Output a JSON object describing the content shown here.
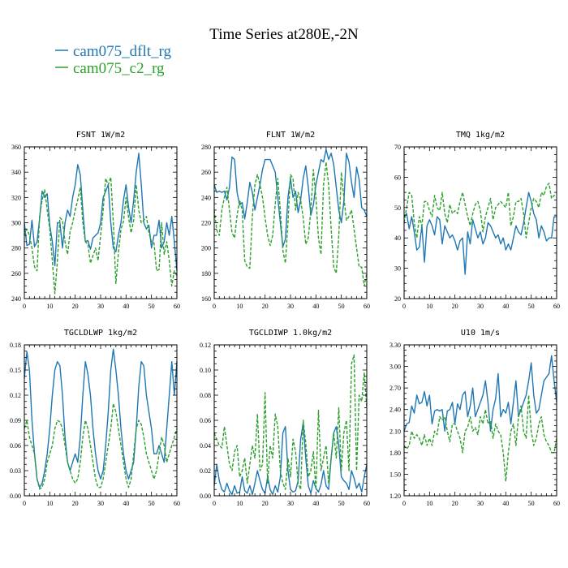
{
  "figure": {
    "title": "Time Series at280E,-2N"
  },
  "legend": [
    {
      "name": "cam075_dflt_rg",
      "color": "#1f77b4",
      "dash": "solid"
    },
    {
      "name": "cam075_c2_rg",
      "color": "#2ca02c",
      "dash": "dashed"
    }
  ],
  "chart_data": [
    {
      "type": "line",
      "title": "FSNT   1W/m2",
      "xlim": [
        0,
        60
      ],
      "ylim": [
        240,
        360
      ],
      "xticks": [
        0,
        10,
        20,
        30,
        40,
        50,
        60
      ],
      "yticks": [
        240,
        260,
        280,
        300,
        320,
        340,
        360
      ],
      "yformat": 0,
      "series": [
        {
          "name": "cam075_dflt_rg",
          "values": [
            300,
            282,
            283,
            302,
            281,
            285,
            303,
            325,
            320,
            323,
            298,
            285,
            266,
            300,
            300,
            280,
            300,
            310,
            305,
            320,
            330,
            346,
            338,
            310,
            285,
            286,
            279,
            288,
            290,
            292,
            300,
            320,
            325,
            330,
            300,
            280,
            277,
            290,
            300,
            318,
            330,
            312,
            300,
            318,
            340,
            355,
            330,
            300,
            295,
            298,
            280,
            290,
            290,
            302,
            280,
            285,
            300,
            290,
            305,
            285,
            262
          ]
        },
        {
          "name": "cam075_c2_rg",
          "values": [
            290,
            295,
            290,
            280,
            265,
            262,
            305,
            318,
            326,
            310,
            295,
            270,
            244,
            270,
            304,
            302,
            285,
            275,
            293,
            300,
            310,
            318,
            328,
            300,
            285,
            283,
            268,
            274,
            280,
            270,
            290,
            310,
            335,
            330,
            336,
            300,
            252,
            276,
            295,
            301,
            320,
            304,
            292,
            302,
            330,
            310,
            300,
            302,
            305,
            292,
            285,
            284,
            262,
            263,
            300,
            275,
            285,
            270,
            250,
            262,
            258
          ]
        }
      ]
    },
    {
      "type": "line",
      "title": "FLNT   1W/m2",
      "xlim": [
        0,
        60
      ],
      "ylim": [
        160,
        280
      ],
      "xticks": [
        0,
        10,
        20,
        30,
        40,
        50,
        60
      ],
      "yticks": [
        160,
        180,
        200,
        220,
        240,
        260,
        280
      ],
      "yformat": 0,
      "series": [
        {
          "name": "cam075_dflt_rg",
          "values": [
            250,
            244,
            245,
            244,
            245,
            238,
            248,
            272,
            270,
            244,
            234,
            236,
            223,
            236,
            252,
            244,
            230,
            240,
            250,
            262,
            270,
            270,
            270,
            265,
            260,
            240,
            220,
            201,
            207,
            240,
            255,
            240,
            245,
            228,
            238,
            255,
            265,
            248,
            226,
            234,
            250,
            260,
            270,
            268,
            278,
            270,
            275,
            266,
            248,
            230,
            220,
            237,
            275,
            268,
            252,
            240,
            264,
            254,
            232,
            230,
            225
          ]
        },
        {
          "name": "cam075_c2_rg",
          "values": [
            230,
            214,
            210,
            230,
            240,
            248,
            230,
            212,
            208,
            226,
            238,
            230,
            190,
            185,
            184,
            225,
            250,
            258,
            250,
            240,
            224,
            210,
            202,
            210,
            235,
            255,
            230,
            198,
            188,
            220,
            258,
            255,
            230,
            244,
            238,
            224,
            203,
            208,
            230,
            262,
            240,
            208,
            195,
            250,
            268,
            250,
            215,
            185,
            180,
            210,
            260,
            240,
            222,
            225,
            230,
            215,
            200,
            185,
            185,
            170,
            180
          ]
        }
      ]
    },
    {
      "type": "line",
      "title": "TMQ   1kg/m2",
      "xlim": [
        0,
        60
      ],
      "ylim": [
        20,
        70
      ],
      "xticks": [
        0,
        10,
        20,
        30,
        40,
        50,
        60
      ],
      "yticks": [
        20,
        30,
        40,
        50,
        60,
        70
      ],
      "yformat": 0,
      "series": [
        {
          "name": "cam075_dflt_rg",
          "values": [
            47,
            48,
            43,
            47,
            42,
            36,
            37,
            44,
            32,
            44,
            46,
            44,
            41,
            47,
            46,
            38,
            44,
            42,
            40,
            41,
            39,
            36,
            39,
            40,
            28,
            42,
            38,
            46,
            43,
            40,
            42,
            38,
            40,
            45,
            44,
            42,
            40,
            41,
            38,
            40,
            36,
            38,
            36,
            40,
            44,
            42,
            41,
            45,
            50,
            55,
            52,
            48,
            46,
            40,
            44,
            42,
            39,
            40,
            40,
            47,
            47
          ]
        },
        {
          "name": "cam075_c2_rg",
          "values": [
            45,
            50,
            55,
            54,
            45,
            40,
            47,
            44,
            52,
            52,
            49,
            47,
            54,
            50,
            49,
            55,
            48,
            45,
            51,
            48,
            49,
            48,
            52,
            55,
            51,
            47,
            44,
            48,
            51,
            52,
            49,
            42,
            47,
            50,
            53,
            46,
            50,
            51,
            52,
            51,
            50,
            55,
            44,
            47,
            52,
            52,
            53,
            48,
            40,
            45,
            50,
            53,
            52,
            50,
            55,
            54,
            57,
            58,
            53,
            54,
            54
          ]
        }
      ]
    },
    {
      "type": "line",
      "title": "TGCLDLWP   1kg/m2",
      "xlim": [
        0,
        60
      ],
      "ylim": [
        0,
        0.18
      ],
      "xticks": [
        0,
        10,
        20,
        30,
        40,
        50,
        60
      ],
      "yticks": [
        0.0,
        0.03,
        0.06,
        0.09,
        0.12,
        0.15,
        0.18
      ],
      "yformat": 2,
      "series": [
        {
          "name": "cam075_dflt_rg",
          "values": [
            0.14,
            0.172,
            0.15,
            0.09,
            0.05,
            0.02,
            0.01,
            0.015,
            0.03,
            0.05,
            0.08,
            0.12,
            0.15,
            0.16,
            0.155,
            0.12,
            0.07,
            0.04,
            0.03,
            0.04,
            0.05,
            0.04,
            0.07,
            0.12,
            0.16,
            0.145,
            0.12,
            0.08,
            0.05,
            0.03,
            0.02,
            0.03,
            0.06,
            0.1,
            0.15,
            0.175,
            0.15,
            0.12,
            0.08,
            0.05,
            0.03,
            0.02,
            0.03,
            0.04,
            0.08,
            0.13,
            0.16,
            0.155,
            0.12,
            0.1,
            0.08,
            0.05,
            0.05,
            0.06,
            0.05,
            0.04,
            0.08,
            0.12,
            0.16,
            0.12,
            0.16
          ]
        },
        {
          "name": "cam075_c2_rg",
          "values": [
            0.08,
            0.09,
            0.07,
            0.06,
            0.05,
            0.02,
            0.008,
            0.01,
            0.02,
            0.04,
            0.05,
            0.06,
            0.08,
            0.09,
            0.088,
            0.08,
            0.06,
            0.04,
            0.03,
            0.02,
            0.015,
            0.02,
            0.04,
            0.07,
            0.09,
            0.08,
            0.06,
            0.04,
            0.02,
            0.01,
            0.01,
            0.02,
            0.04,
            0.06,
            0.08,
            0.11,
            0.1,
            0.08,
            0.06,
            0.04,
            0.02,
            0.01,
            0.02,
            0.05,
            0.08,
            0.09,
            0.085,
            0.07,
            0.05,
            0.04,
            0.03,
            0.02,
            0.03,
            0.05,
            0.07,
            0.06,
            0.04,
            0.05,
            0.06,
            0.07,
            0.08
          ]
        }
      ]
    },
    {
      "type": "line",
      "title": "TGCLDIWP   1.0kg/m2",
      "xlim": [
        0,
        60
      ],
      "ylim": [
        0,
        0.12
      ],
      "xticks": [
        0,
        10,
        20,
        30,
        40,
        50,
        60
      ],
      "yticks": [
        0.0,
        0.02,
        0.04,
        0.06,
        0.08,
        0.1,
        0.12
      ],
      "yformat": 2,
      "series": [
        {
          "name": "cam075_dflt_rg",
          "values": [
            0.008,
            0.025,
            0.012,
            0.005,
            0.003,
            0.01,
            0.004,
            0.001,
            0.008,
            0.002,
            0.003,
            0.015,
            0.004,
            0.002,
            0.008,
            0.001,
            0.01,
            0.02,
            0.012,
            0.005,
            0.002,
            0.015,
            0.005,
            0.001,
            0.008,
            0.003,
            0.015,
            0.05,
            0.055,
            0.02,
            0.005,
            0.003,
            0.004,
            0.012,
            0.045,
            0.058,
            0.03,
            0.008,
            0.002,
            0.012,
            0.006,
            0.003,
            0.009,
            0.02,
            0.008,
            0.005,
            0.03,
            0.05,
            0.055,
            0.04,
            0.015,
            0.012,
            0.01,
            0.005,
            0.02,
            0.014,
            0.006,
            0.01,
            0.003,
            0.015,
            0.025
          ]
        },
        {
          "name": "cam075_c2_rg",
          "values": [
            0.05,
            0.045,
            0.04,
            0.038,
            0.055,
            0.04,
            0.025,
            0.02,
            0.035,
            0.04,
            0.015,
            0.02,
            0.03,
            0.01,
            0.025,
            0.04,
            0.03,
            0.065,
            0.02,
            0.025,
            0.082,
            0.01,
            0.04,
            0.03,
            0.065,
            0.055,
            0.02,
            0.01,
            0.005,
            0.03,
            0.015,
            0.045,
            0.035,
            0.01,
            0.005,
            0.06,
            0.042,
            0.015,
            0.02,
            0.035,
            0.005,
            0.068,
            0.02,
            0.03,
            0.04,
            0.01,
            0.03,
            0.05,
            0.03,
            0.07,
            0.02,
            0.05,
            0.06,
            0.02,
            0.105,
            0.112,
            0.02,
            0.08,
            0.075,
            0.098,
            0.07
          ]
        }
      ]
    },
    {
      "type": "line",
      "title": "U10   1m/s",
      "xlim": [
        0,
        60
      ],
      "ylim": [
        1.2,
        3.3
      ],
      "xticks": [
        0,
        10,
        20,
        30,
        40,
        50,
        60
      ],
      "yticks": [
        1.2,
        1.5,
        1.8,
        2.1,
        2.4,
        2.7,
        3.0,
        3.3
      ],
      "yformat": 2,
      "series": [
        {
          "name": "cam075_dflt_rg",
          "values": [
            2.1,
            2.2,
            2.22,
            2.45,
            2.35,
            2.6,
            2.48,
            2.5,
            2.65,
            2.45,
            2.6,
            2.2,
            2.38,
            2.4,
            2.38,
            2.4,
            2.1,
            2.38,
            2.4,
            2.5,
            2.2,
            2.48,
            2.4,
            2.6,
            2.65,
            2.3,
            2.45,
            2.7,
            2.3,
            2.4,
            2.5,
            2.6,
            2.8,
            2.5,
            2.1,
            2.4,
            2.55,
            2.9,
            2.3,
            2.4,
            2.35,
            2.5,
            2.2,
            2.5,
            2.8,
            2.3,
            2.4,
            2.5,
            2.6,
            2.8,
            3.05,
            2.6,
            2.35,
            2.4,
            2.6,
            2.8,
            2.85,
            2.9,
            3.15,
            2.8,
            2.5
          ]
        },
        {
          "name": "cam075_c2_rg",
          "values": [
            1.9,
            1.85,
            1.9,
            2.1,
            2.0,
            2.05,
            2.0,
            1.9,
            2.05,
            1.9,
            2.0,
            1.9,
            2.1,
            2.05,
            2.3,
            2.25,
            2.3,
            2.1,
            1.95,
            2.2,
            2.2,
            2.1,
            2.0,
            1.8,
            2.1,
            2.15,
            2.3,
            2.1,
            2.15,
            2.05,
            2.3,
            2.2,
            2.4,
            2.2,
            2.25,
            2.0,
            2.2,
            2.1,
            2.05,
            1.8,
            1.4,
            1.8,
            2.1,
            2.2,
            1.9,
            2.3,
            2.45,
            2.1,
            2.0,
            2.6,
            2.1,
            1.9,
            2.0,
            2.2,
            2.3,
            2.05,
            1.95,
            1.9,
            1.8,
            1.8,
            2.0
          ]
        }
      ]
    }
  ]
}
